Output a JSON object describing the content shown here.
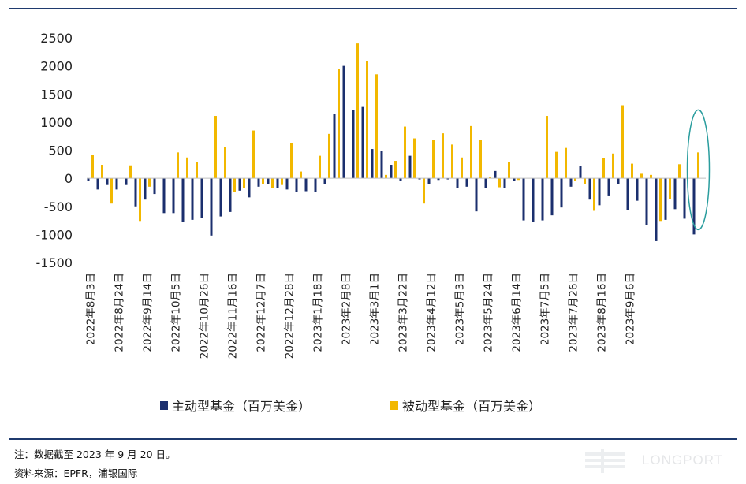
{
  "chart_data": {
    "type": "bar",
    "ylim": [
      -1500,
      2500
    ],
    "yticks": [
      2500,
      2000,
      1500,
      1000,
      500,
      0,
      -500,
      -1000,
      -1500
    ],
    "x_tick_labels": [
      "2022年8月3日",
      "2022年8月24日",
      "2022年9月14日",
      "2022年10月5日",
      "2022年10月26日",
      "2022年11月16日",
      "2022年12月7日",
      "2022年12月28日",
      "2023年1月18日",
      "2023年2月8日",
      "2023年3月1日",
      "2023年3月22日",
      "2023年4月12日",
      "2023年5月3日",
      "2023年5月24日",
      "2023年6月14日",
      "2023年7月5日",
      "2023年7月26日",
      "2023年8月16日",
      "2023年9月6日"
    ],
    "series": [
      {
        "name": "主动型基金（百万美金）",
        "color": "#1b2f6e",
        "values": [
          -50,
          -200,
          -120,
          -200,
          -120,
          -500,
          -380,
          -280,
          -620,
          -620,
          -780,
          -740,
          -700,
          -1020,
          -680,
          -600,
          -220,
          -340,
          -150,
          -100,
          -180,
          -200,
          -250,
          -230,
          -240,
          -100,
          1140,
          2000,
          1210,
          1270,
          520,
          480,
          240,
          -50,
          400,
          -20,
          -100,
          -30,
          -20,
          -180,
          -150,
          -590,
          -180,
          130,
          -170,
          -50,
          -750,
          -780,
          -750,
          -660,
          -520,
          -150,
          220,
          -380,
          -480,
          -320,
          -100,
          -560,
          -400,
          -830,
          -1120,
          -740,
          -550,
          -720,
          -1000
        ],
        "x_index": [
          0,
          1,
          2,
          3,
          4,
          5,
          6,
          7,
          8,
          9,
          10,
          11,
          12,
          13,
          14,
          15,
          16,
          17,
          18,
          19,
          20,
          21,
          22,
          23,
          24,
          25,
          26,
          27,
          28,
          29,
          30,
          31,
          32,
          33,
          34,
          35,
          36,
          37,
          38,
          39,
          40,
          41,
          42,
          43,
          44,
          45,
          46,
          47,
          48,
          49,
          50,
          51,
          52,
          53,
          54,
          55,
          56,
          57,
          58,
          59,
          60,
          61,
          62,
          63,
          64
        ]
      },
      {
        "name": "被动型基金（百万美金）",
        "color": "#f2b800",
        "values": [
          410,
          240,
          -450,
          0,
          230,
          -760,
          -150,
          0,
          0,
          460,
          370,
          290,
          1110,
          560,
          -250,
          -170,
          850,
          -100,
          -170,
          -120,
          630,
          120,
          400,
          790,
          1950,
          2400,
          2080,
          1850,
          60,
          310,
          920,
          710,
          -450,
          680,
          800,
          600,
          370,
          930,
          680,
          30,
          -160,
          290,
          -30,
          1110,
          470,
          540,
          -50,
          -100,
          -580,
          360,
          440,
          1300,
          260,
          80,
          60,
          -760,
          -370,
          250,
          460
        ],
        "x_index": [
          0,
          1,
          2,
          3,
          4,
          5,
          6,
          7,
          8,
          9,
          10,
          11,
          13,
          14,
          15,
          16,
          17,
          18,
          19,
          20,
          21,
          22,
          24,
          25,
          26,
          28,
          29,
          30,
          31,
          32,
          33,
          34,
          35,
          36,
          37,
          38,
          39,
          40,
          41,
          42,
          43,
          44,
          45,
          48,
          49,
          50,
          51,
          52,
          53,
          54,
          55,
          56,
          57,
          58,
          59,
          60,
          61,
          62,
          64
        ]
      }
    ],
    "highlight": {
      "type": "ellipse",
      "target_index": 64,
      "color": "#2a9d9e"
    }
  },
  "notes": {
    "line1": "注：数据截至 2023 年 9 月 20 日。",
    "line2": "资料来源：EPFR，浦银国际"
  },
  "watermark": {
    "text": "LONGPORT"
  }
}
